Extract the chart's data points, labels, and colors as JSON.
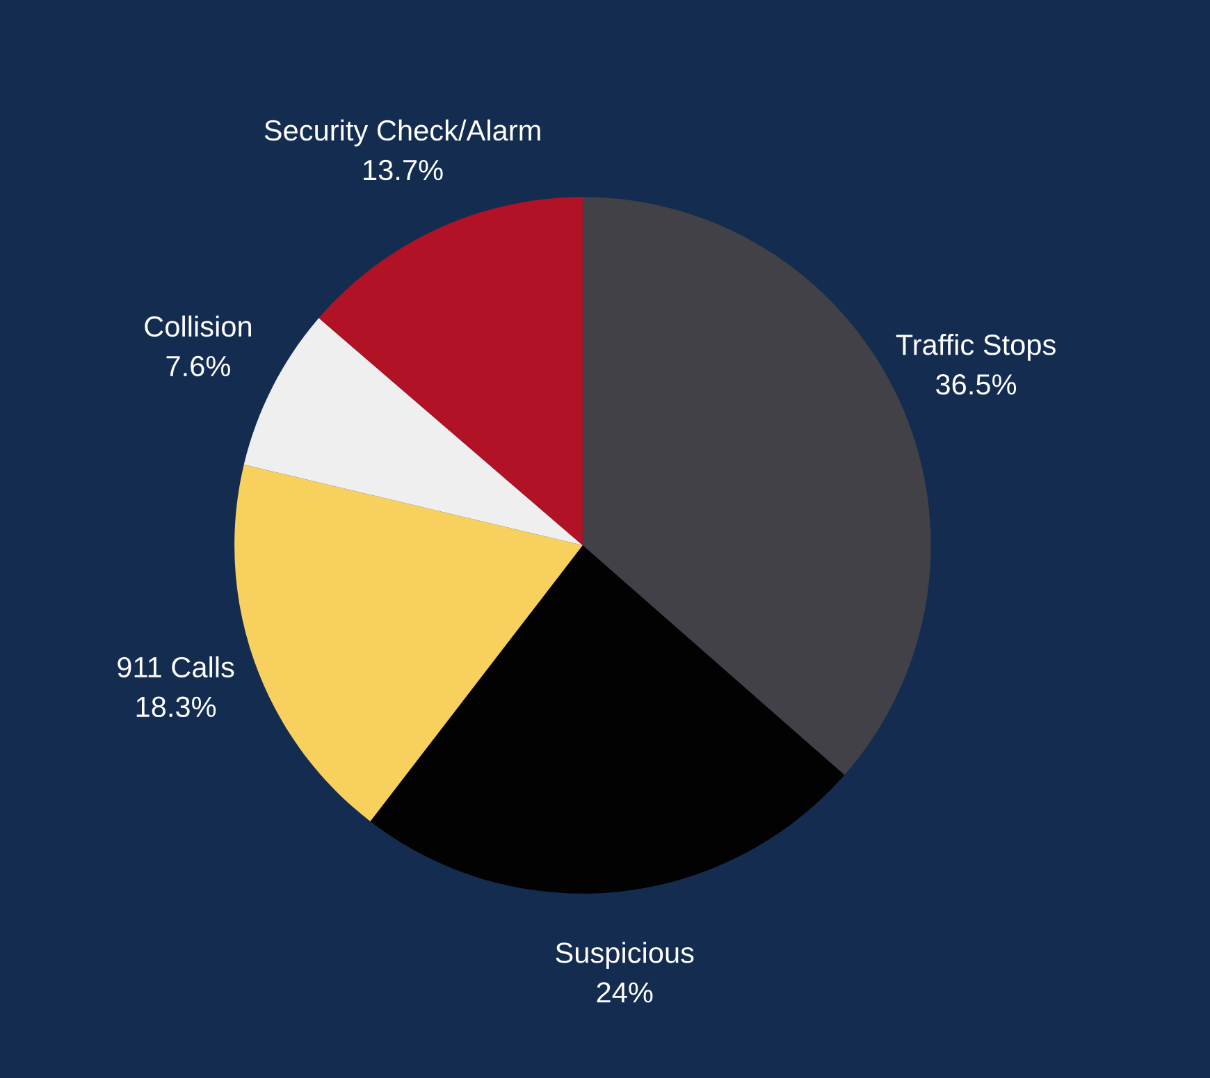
{
  "chart_data": {
    "type": "pie",
    "categories": [
      "Traffic Stops",
      "Suspicious",
      "911 Calls",
      "Collision",
      "Security Check/Alarm"
    ],
    "values": [
      36.5,
      24,
      18.3,
      7.6,
      13.7
    ],
    "colors": [
      "#414147",
      "#020202",
      "#f7d05e",
      "#efefef",
      "#b11226"
    ],
    "value_labels": [
      "36.5%",
      "24%",
      "18.3%",
      "7.6%",
      "13.7%"
    ],
    "legend": false
  }
}
